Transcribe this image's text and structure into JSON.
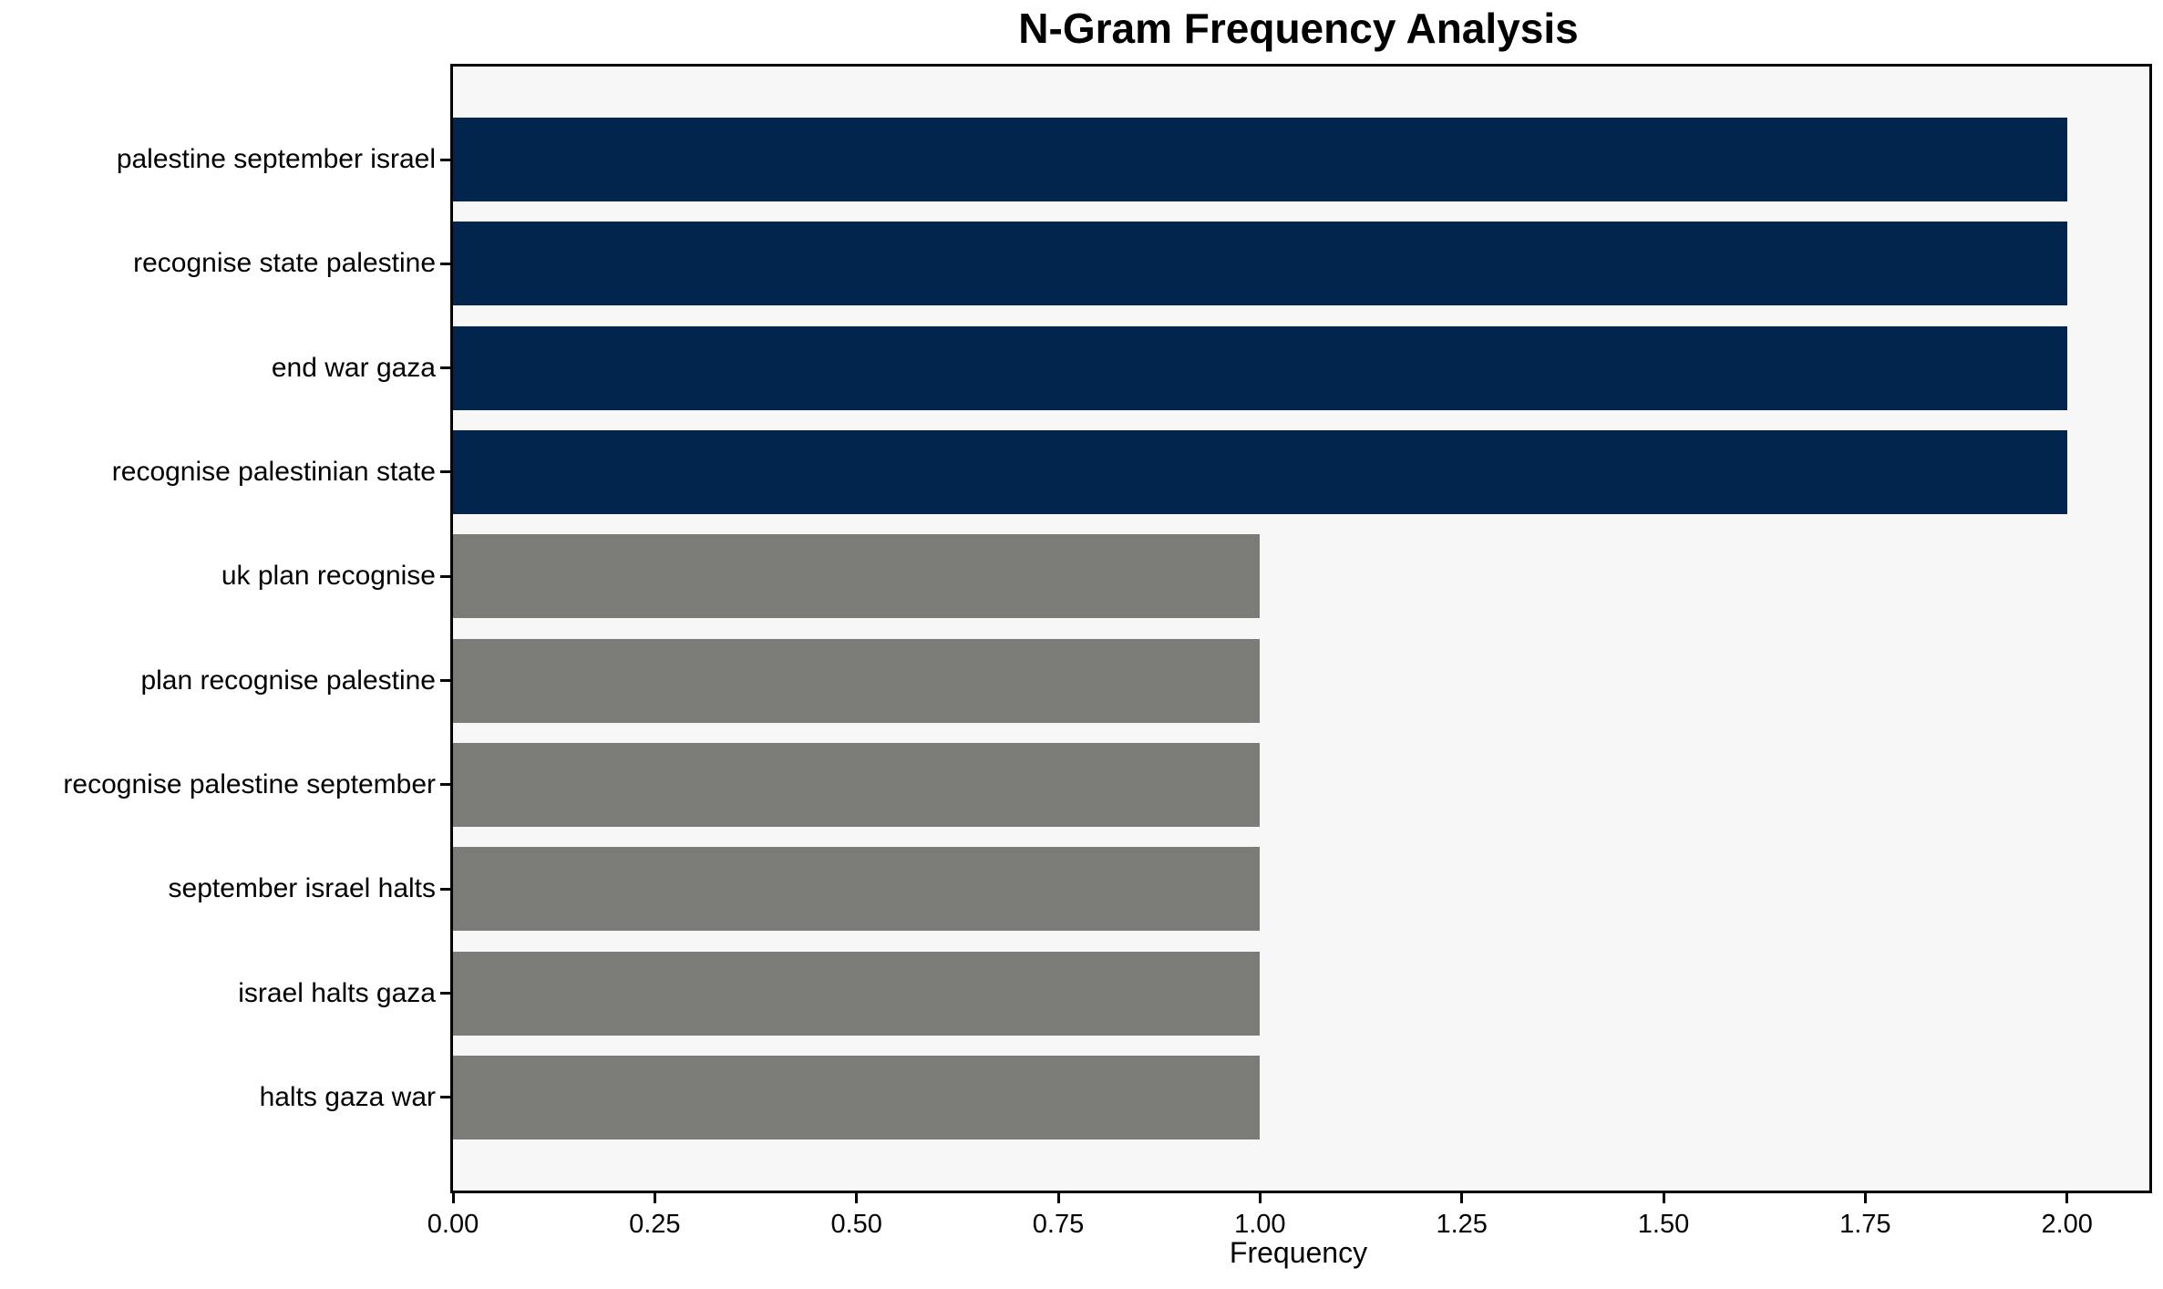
{
  "chart_data": {
    "type": "bar",
    "orientation": "horizontal",
    "title": "N-Gram Frequency Analysis",
    "xlabel": "Frequency",
    "ylabel": "",
    "categories": [
      "palestine september israel",
      "recognise state palestine",
      "end war gaza",
      "recognise palestinian state",
      "uk plan recognise",
      "plan recognise palestine",
      "recognise palestine september",
      "september israel halts",
      "israel halts gaza",
      "halts gaza war"
    ],
    "values": [
      2,
      2,
      2,
      2,
      1,
      1,
      1,
      1,
      1,
      1
    ],
    "bar_colors": [
      "#02254E",
      "#02254E",
      "#02254E",
      "#02254E",
      "#7B7B78",
      "#7B7B78",
      "#7B7B78",
      "#7B7B78",
      "#7B7B78",
      "#7B7B78"
    ],
    "x_tick_values": [
      0.0,
      0.25,
      0.5,
      0.75,
      1.0,
      1.25,
      1.5,
      1.75,
      2.0
    ],
    "x_tick_labels": [
      "0.00",
      "0.25",
      "0.50",
      "0.75",
      "1.00",
      "1.25",
      "1.50",
      "1.75",
      "2.00"
    ],
    "xlim": [
      0,
      2.102
    ],
    "grid": false,
    "legend": null,
    "colors": {
      "highlight_bar": "#02254E",
      "default_bar": "#7B7B78",
      "plot_background": "#F7F7F7",
      "figure_background": "#FFFFFF",
      "text": "#000000"
    }
  }
}
